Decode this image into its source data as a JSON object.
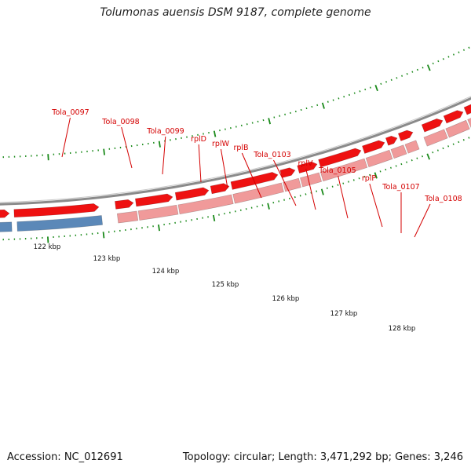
{
  "title": "Tolumonas auensis DSM 9187, complete genome",
  "footer": {
    "accession": "Accession: NC_012691",
    "summary": "Topology: circular; Length: 3,471,292 bp; Genes: 3,246"
  },
  "colors": {
    "gene_label": "#d40000",
    "cds_strand": "#ee1111",
    "operon_light": "#f09a9a",
    "gene_blue": "#5b88b8",
    "backbone": "#8a8a8a",
    "ticks": "#1a8a1a"
  },
  "kbp_labels": [
    "122 kbp",
    "123 kbp",
    "124 kbp",
    "125 kbp",
    "126 kbp",
    "127 kbp",
    "128 kbp"
  ],
  "gene_labels": [
    "Tola_0097",
    "Tola_0098",
    "Tola_0099",
    "rplD",
    "rplW",
    "rplB",
    "Tola_0103",
    "rplV",
    "Tola_0105",
    "rplP",
    "Tola_0107",
    "Tola_0108"
  ]
}
